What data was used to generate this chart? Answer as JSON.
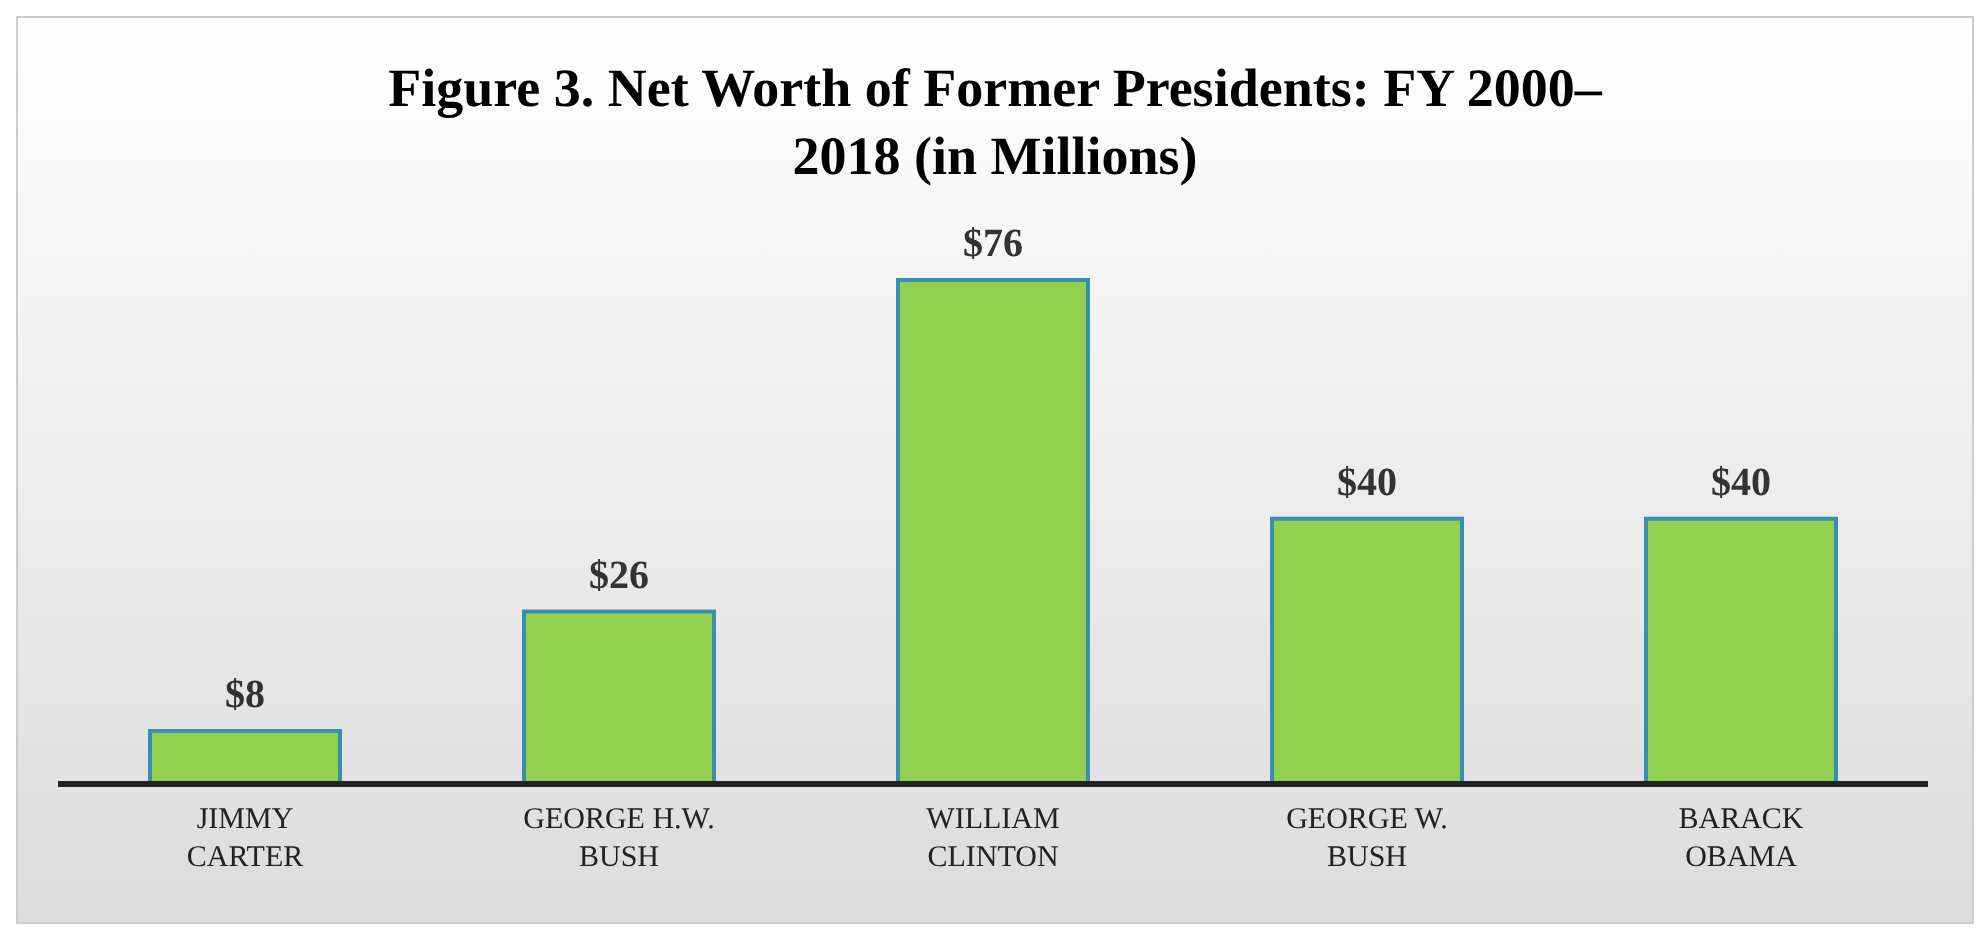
{
  "chart_data": {
    "type": "bar",
    "title": "Figure 3. Net Worth of Former Presidents: FY 2000–2018 (in Millions)",
    "categories": [
      "JIMMY CARTER",
      "GEORGE H.W. BUSH",
      "WILLIAM CLINTON",
      "GEORGE W. BUSH",
      "BARACK OBAMA"
    ],
    "values": [
      8,
      26,
      76,
      40,
      40
    ],
    "value_labels": [
      "$8",
      "$26",
      "$76",
      "$40",
      "$40"
    ],
    "color": "#92d050",
    "tick_labels": "x"
  }
}
